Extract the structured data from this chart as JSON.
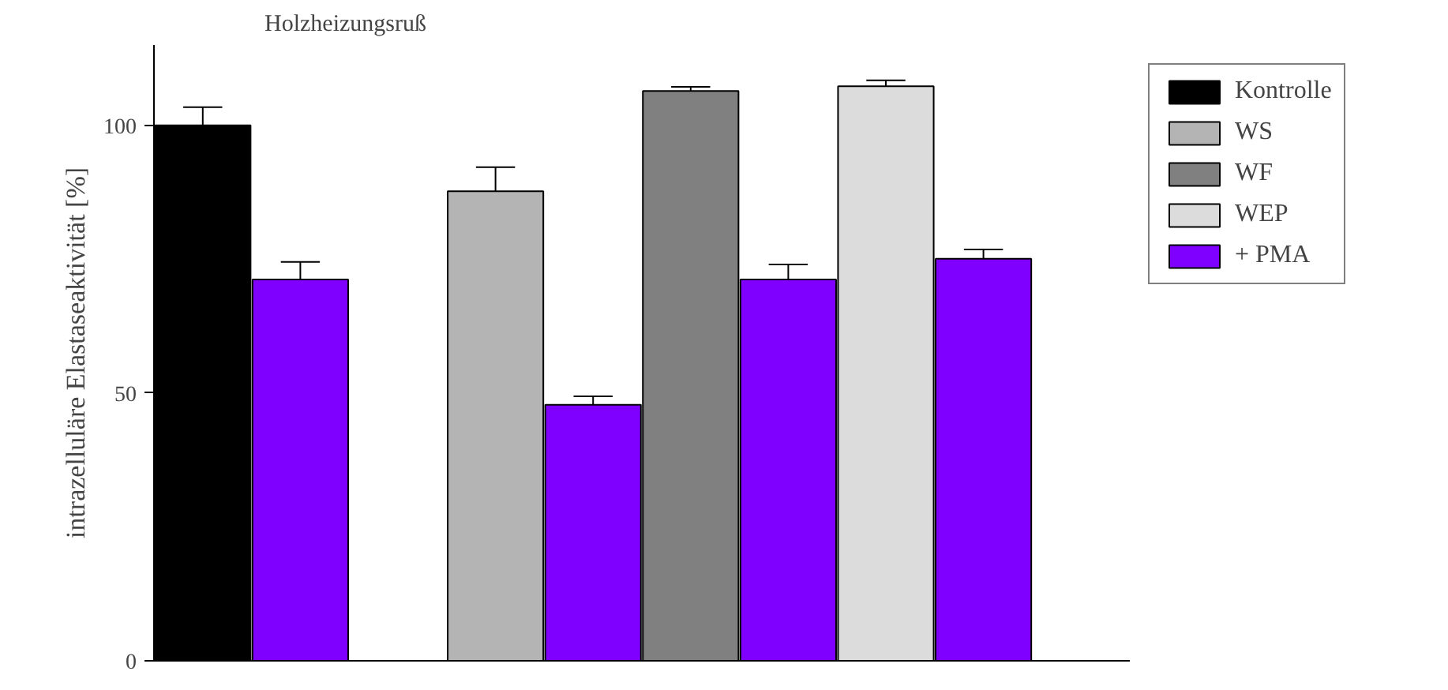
{
  "chart_data": {
    "type": "bar",
    "title": "Holzheizungsruß",
    "ylabel": "intrazelluläre Elastaseaktivität [%]",
    "categories": [
      null,
      null,
      null,
      null,
      null,
      null,
      null,
      null,
      null,
      null
    ],
    "series": [
      {
        "name": "Kontrolle",
        "color": "#000000",
        "values": [
          100,
          null,
          null,
          null,
          null,
          null,
          null,
          null,
          null,
          null
        ],
        "errors": [
          [
            100,
            103.4
          ],
          null,
          null,
          null,
          null,
          null,
          null,
          null,
          null,
          null
        ]
      },
      {
        "name": "WS",
        "color": "#b4b4b4",
        "values": [
          null,
          null,
          null,
          87.7,
          null,
          null,
          null,
          null,
          null,
          null
        ],
        "errors": [
          null,
          null,
          null,
          [
            87.7,
            92.2
          ],
          null,
          null,
          null,
          null,
          null,
          null
        ]
      },
      {
        "name": "WF",
        "color": "#808080",
        "values": [
          null,
          null,
          null,
          null,
          null,
          106.4,
          null,
          null,
          null,
          null
        ],
        "errors": [
          null,
          null,
          null,
          null,
          null,
          [
            106.4,
            107.2
          ],
          null,
          null,
          null,
          null
        ]
      },
      {
        "name": "WEP",
        "color": "#dcdcdc",
        "values": [
          null,
          null,
          null,
          null,
          null,
          null,
          null,
          107.3,
          null,
          null
        ],
        "errors": [
          null,
          null,
          null,
          null,
          null,
          null,
          null,
          [
            107.3,
            108.4
          ],
          null,
          null
        ]
      },
      {
        "name": "+ PMA",
        "color": "#8000ff",
        "values": [
          null,
          71.2,
          null,
          null,
          47.8,
          null,
          71.2,
          null,
          75.1,
          null
        ],
        "errors": [
          null,
          [
            71.2,
            74.5
          ],
          null,
          null,
          [
            47.8,
            49.4
          ],
          null,
          [
            71.2,
            74.0
          ],
          null,
          [
            75.1,
            76.8
          ],
          null
        ]
      }
    ],
    "ylim": [
      0,
      115
    ],
    "yticks": [
      0,
      50,
      100
    ],
    "grid": false,
    "legend": "right"
  }
}
